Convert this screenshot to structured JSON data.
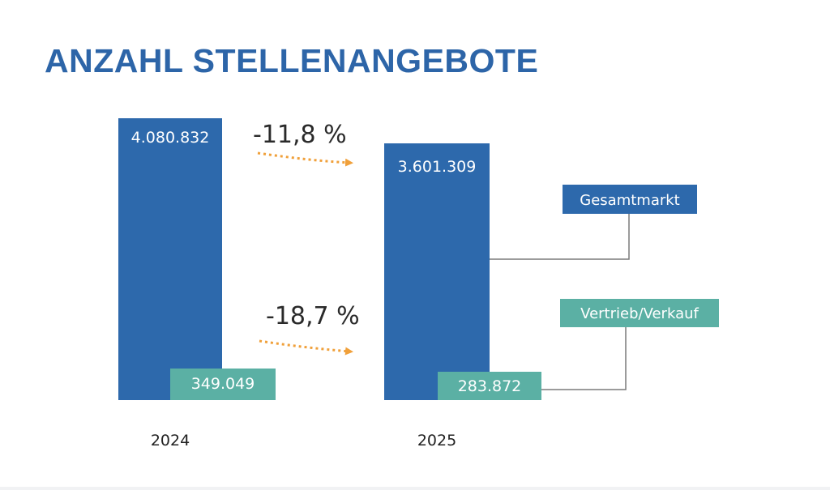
{
  "title": "ANZAHL STELLENANGEBOTE",
  "colors": {
    "title": "#2d65a8",
    "gesamtmarkt": "#2d69ac",
    "vertrieb": "#5bb0a4",
    "arrow": "#f0a03a",
    "connector": "#7a7a7a"
  },
  "chart_data": {
    "type": "bar",
    "categories": [
      "2024",
      "2025"
    ],
    "series": [
      {
        "name": "Gesamtmarkt",
        "values": [
          4080832,
          3601309
        ],
        "labels": [
          "4.080.832",
          "3.601.309"
        ]
      },
      {
        "name": "Vertrieb/Verkauf",
        "values": [
          349049,
          283872
        ],
        "labels": [
          "349.049",
          "283.872"
        ]
      }
    ],
    "annotations": [
      {
        "series": "Gesamtmarkt",
        "text": "-11,8 %"
      },
      {
        "series": "Vertrieb/Verkauf",
        "text": "-18,7 %"
      }
    ],
    "legend": [
      "Gesamtmarkt",
      "Vertrieb/Verkauf"
    ],
    "legend_placement": "right",
    "grid": false
  }
}
